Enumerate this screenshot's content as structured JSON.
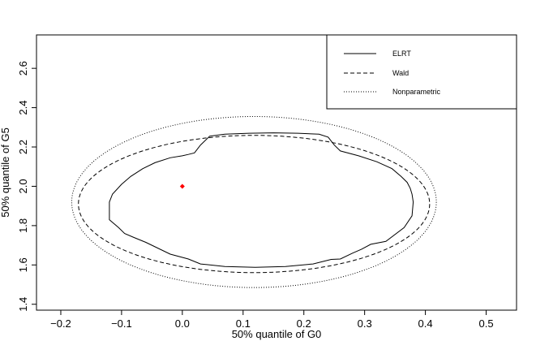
{
  "chart_data": {
    "type": "line",
    "title": "",
    "xlabel": "50% quantile of G0",
    "ylabel": "50% quantile of G5",
    "xlim": [
      -0.24,
      0.55
    ],
    "ylim": [
      1.37,
      2.77
    ],
    "xticks": [
      -0.2,
      -0.1,
      0.0,
      0.1,
      0.2,
      0.3,
      0.4,
      0.5
    ],
    "yticks": [
      1.4,
      1.6,
      1.8,
      2.0,
      2.2,
      2.4,
      2.6
    ],
    "xtick_labels": [
      "−0.2",
      "−0.1",
      "0.0",
      "0.1",
      "0.2",
      "0.3",
      "0.4",
      "0.5"
    ],
    "ytick_labels": [
      "1.4",
      "1.6",
      "1.8",
      "2.0",
      "2.2",
      "2.4",
      "2.6"
    ],
    "grid": false,
    "legend": {
      "position": "top-right",
      "entries": [
        {
          "label": "ELRT",
          "style": "solid"
        },
        {
          "label": "Wald",
          "style": "dashed"
        },
        {
          "label": "Nonparametric",
          "style": "dotted"
        }
      ]
    },
    "point": {
      "x": 0.0,
      "y": 2.0,
      "color": "#ff0000"
    },
    "series": [
      {
        "name": "ELRT",
        "style": "solid",
        "color": "#000000",
        "closed": true,
        "points": [
          [
            -0.12,
            1.92
          ],
          [
            -0.115,
            1.96
          ],
          [
            -0.1,
            2.01
          ],
          [
            -0.085,
            2.05
          ],
          [
            -0.065,
            2.09
          ],
          [
            -0.045,
            2.12
          ],
          [
            -0.02,
            2.145
          ],
          [
            0.0,
            2.155
          ],
          [
            0.01,
            2.162
          ],
          [
            0.02,
            2.17
          ],
          [
            0.03,
            2.21
          ],
          [
            0.045,
            2.255
          ],
          [
            0.07,
            2.265
          ],
          [
            0.11,
            2.27
          ],
          [
            0.15,
            2.272
          ],
          [
            0.19,
            2.27
          ],
          [
            0.225,
            2.265
          ],
          [
            0.24,
            2.25
          ],
          [
            0.25,
            2.21
          ],
          [
            0.26,
            2.18
          ],
          [
            0.29,
            2.155
          ],
          [
            0.32,
            2.125
          ],
          [
            0.345,
            2.09
          ],
          [
            0.36,
            2.05
          ],
          [
            0.37,
            2.02
          ],
          [
            0.375,
            1.99
          ],
          [
            0.378,
            1.96
          ],
          [
            0.38,
            1.92
          ],
          [
            0.378,
            1.85
          ],
          [
            0.365,
            1.79
          ],
          [
            0.335,
            1.72
          ],
          [
            0.31,
            1.705
          ],
          [
            0.295,
            1.68
          ],
          [
            0.28,
            1.66
          ],
          [
            0.26,
            1.63
          ],
          [
            0.245,
            1.628
          ],
          [
            0.215,
            1.605
          ],
          [
            0.17,
            1.592
          ],
          [
            0.12,
            1.588
          ],
          [
            0.07,
            1.592
          ],
          [
            0.03,
            1.605
          ],
          [
            0.01,
            1.63
          ],
          [
            -0.02,
            1.655
          ],
          [
            -0.06,
            1.715
          ],
          [
            -0.08,
            1.74
          ],
          [
            -0.095,
            1.76
          ],
          [
            -0.105,
            1.79
          ],
          [
            -0.12,
            1.83
          ]
        ]
      },
      {
        "name": "Wald",
        "style": "dashed",
        "color": "#000000",
        "ellipse": {
          "cx": 0.118,
          "cy": 1.91,
          "rx": 0.289,
          "ry": 0.349
        }
      },
      {
        "name": "Nonparametric",
        "style": "dotted",
        "color": "#000000",
        "ellipse": {
          "cx": 0.118,
          "cy": 1.92,
          "rx": 0.3,
          "ry": 0.435
        }
      }
    ]
  }
}
